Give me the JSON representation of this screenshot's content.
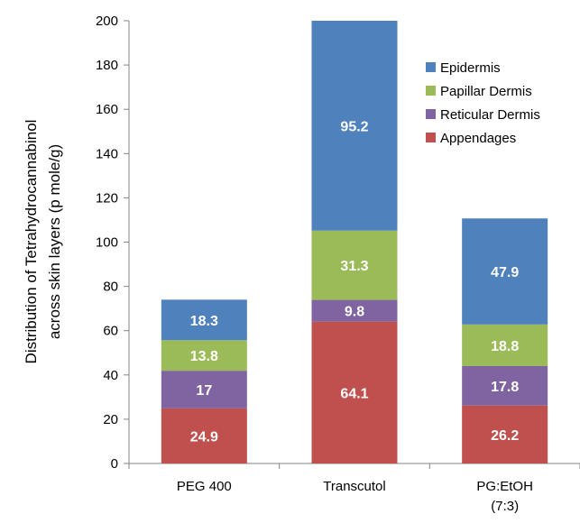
{
  "chart_data": {
    "type": "bar",
    "stacked": true,
    "categories": [
      "PEG 400",
      "Transcutol",
      "PG:EtOH (7:3)"
    ],
    "category_lines": [
      [
        "PEG 400"
      ],
      [
        "Transcutol"
      ],
      [
        "PG:EtOH",
        "(7:3)"
      ]
    ],
    "series": [
      {
        "name": "Appendages",
        "color": "#c0504d",
        "values": [
          24.9,
          64.1,
          26.2
        ]
      },
      {
        "name": "Reticular Dermis",
        "color": "#8064a2",
        "values": [
          17,
          9.8,
          17.8
        ]
      },
      {
        "name": "Papillar Dermis",
        "color": "#9bbb59",
        "values": [
          13.8,
          31.3,
          18.8
        ]
      },
      {
        "name": "Epidermis",
        "color": "#4f81bd",
        "values": [
          18.3,
          95.2,
          47.9
        ]
      }
    ],
    "data_labels": [
      [
        "24.9",
        "64.1",
        "26.2"
      ],
      [
        "17",
        "9.8",
        "17.8"
      ],
      [
        "13.8",
        "31.3",
        "18.8"
      ],
      [
        "18.3",
        "95.2",
        "47.9"
      ]
    ],
    "legend_order": [
      "Epidermis",
      "Papillar Dermis",
      "Reticular Dermis",
      "Appendages"
    ],
    "legend_position": "top-right",
    "ylabel_lines": [
      "Distribution of Tetrahydrocannabinol",
      "across skin layers (p mole/g)"
    ],
    "xlabel": "",
    "ylim": [
      0,
      200
    ],
    "yticks": [
      0,
      20,
      40,
      60,
      80,
      100,
      120,
      140,
      160,
      180,
      200
    ],
    "grid": false
  }
}
